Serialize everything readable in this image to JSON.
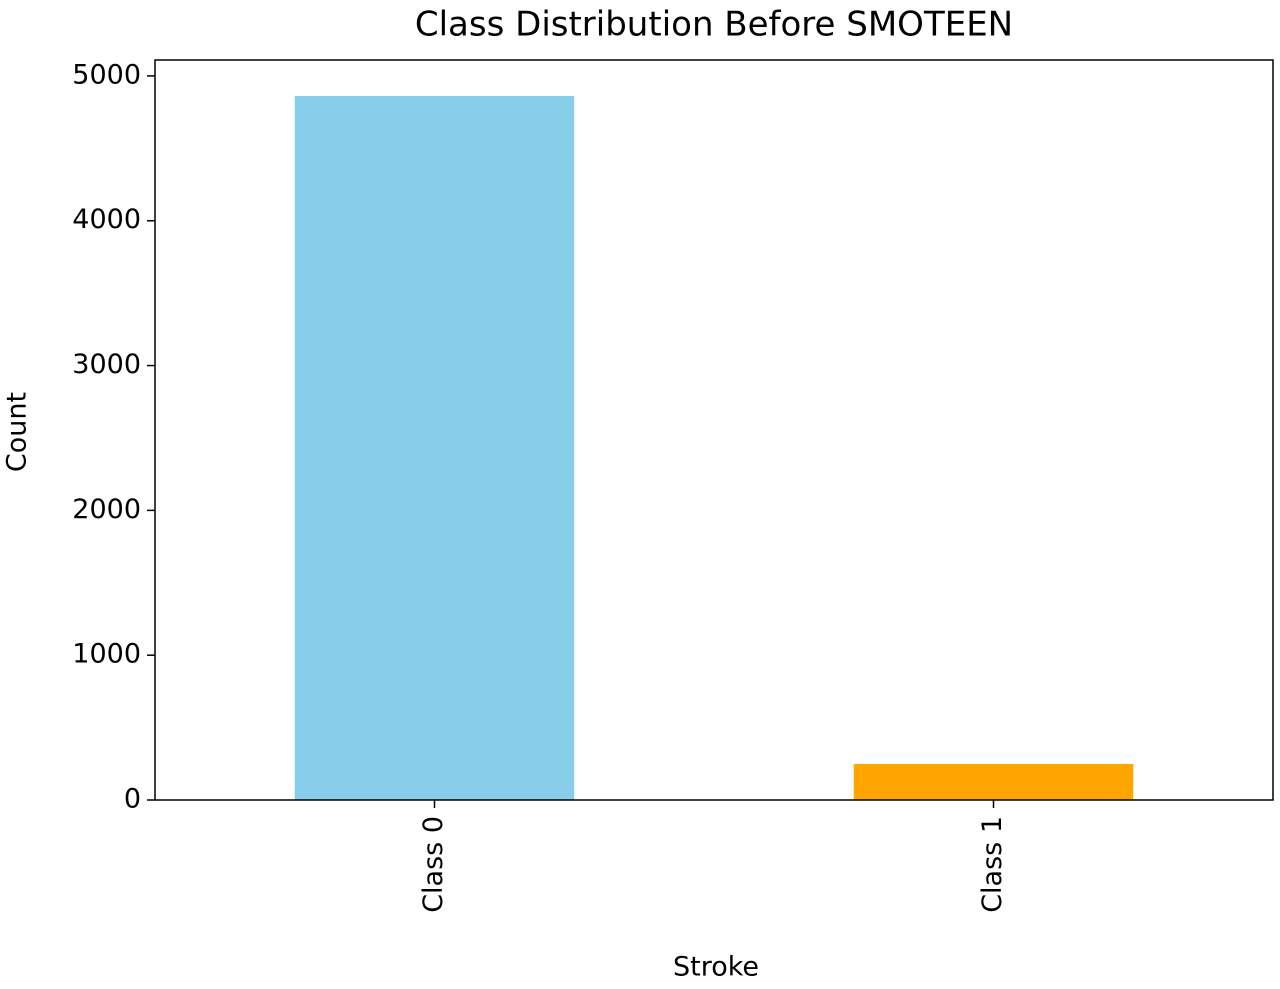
{
  "chart_data": {
    "type": "bar",
    "title": "Class Distribution Before SMOTEEN",
    "x_label": "Stroke",
    "y_label": "Count",
    "categories": [
      "Class 0",
      "Class 1"
    ],
    "values": [
      4861,
      249
    ],
    "colors": [
      "#87ceeb",
      "#ffa500"
    ],
    "ylim": [
      0,
      5110
    ],
    "yticks": [
      0,
      1000,
      2000,
      3000,
      4000,
      5000
    ],
    "grid": false
  }
}
